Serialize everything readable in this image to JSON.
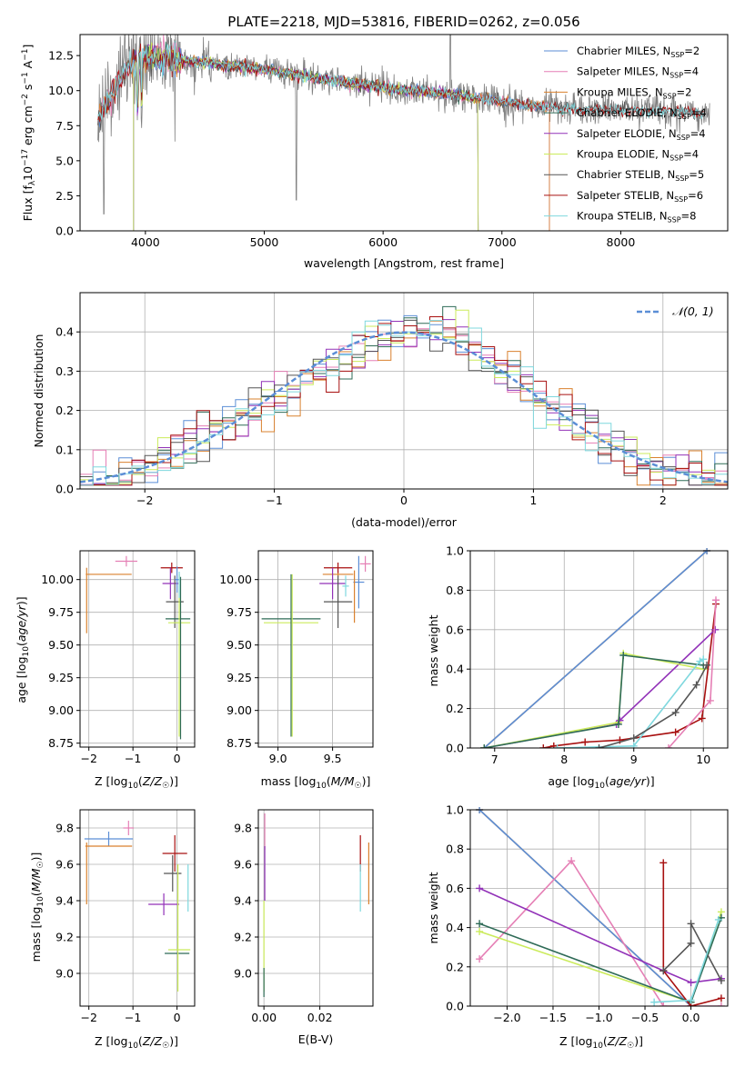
{
  "colors": {
    "chabrier_miles": "#5B8ED6",
    "salpeter_miles": "#E57FB5",
    "kroupa_miles": "#D9812E",
    "chabrier_elodie": "#2F6B57",
    "salpeter_elodie": "#9232B8",
    "kroupa_elodie": "#CBEB5B",
    "chabrier_stelib": "#555555",
    "salpeter_stelib": "#A81010",
    "kroupa_stelib": "#7FD8DE",
    "data": "#808080",
    "grid": "#b0b0b0"
  },
  "chart_data": [
    {
      "id": "spectrum",
      "type": "line",
      "title": "PLATE=2218, MJD=53816, FIBERID=0262, z=0.056",
      "xlabel": "wavelength [Angstrom, rest frame]",
      "ylabel": "Flux [f_λ10^-17 erg cm^-2 s^-1 A^-1]",
      "xlim": [
        3450,
        8900
      ],
      "ylim": [
        0,
        14
      ],
      "xticks": [
        "4000",
        "5000",
        "6000",
        "7000",
        "8000"
      ],
      "yticks": [
        "0.0",
        "2.5",
        "5.0",
        "7.5",
        "10.0",
        "12.5"
      ],
      "grid": false,
      "legend_position": "upper-right",
      "legend": [
        {
          "label": "Chabrier MILES, N",
          "sub": "SSP",
          "n": "=2"
        },
        {
          "label": "Salpeter MILES, N",
          "sub": "SSP",
          "n": "=4"
        },
        {
          "label": "Kroupa MILES, N",
          "sub": "SSP",
          "n": "=2"
        },
        {
          "label": "Chabrier ELODIE, N",
          "sub": "SSP",
          "n": "=4"
        },
        {
          "label": "Salpeter ELODIE, N",
          "sub": "SSP",
          "n": "=4"
        },
        {
          "label": "Kroupa ELODIE, N",
          "sub": "SSP",
          "n": "=4"
        },
        {
          "label": "Chabrier STELIB, N",
          "sub": "SSP",
          "n": "=5"
        },
        {
          "label": "Salpeter STELIB, N",
          "sub": "SSP",
          "n": "=6"
        },
        {
          "label": "Kroupa STELIB, N",
          "sub": "SSP",
          "n": "=8"
        }
      ],
      "continuum": [
        [
          3600,
          8.0
        ],
        [
          3700,
          9.5
        ],
        [
          3800,
          11.0
        ],
        [
          3900,
          12.0
        ],
        [
          4000,
          12.5
        ],
        [
          4200,
          12.3
        ],
        [
          4500,
          12.0
        ],
        [
          5000,
          11.5
        ],
        [
          5500,
          10.8
        ],
        [
          6000,
          10.2
        ],
        [
          6500,
          9.8
        ],
        [
          7000,
          9.2
        ],
        [
          7500,
          8.7
        ],
        [
          8000,
          8.6
        ],
        [
          8500,
          8.5
        ],
        [
          8700,
          8.4
        ]
      ]
    },
    {
      "id": "residuals",
      "type": "step",
      "xlabel": "(data-model)/error",
      "ylabel": "Normed distribution",
      "xlim": [
        -2.5,
        2.5
      ],
      "ylim": [
        0,
        0.5
      ],
      "xticks": [
        "−2",
        "−1",
        "0",
        "1",
        "2"
      ],
      "yticks": [
        "0.0",
        "0.1",
        "0.2",
        "0.3",
        "0.4"
      ],
      "grid": true,
      "legend_position": "upper-right",
      "gaussian_label": "𝒩(0, 1)"
    },
    {
      "id": "age_vs_Z",
      "type": "errorbar",
      "xlabel": "Z [log10(Z/Z☉)]",
      "ylabel": "age [log10(age/yr)]",
      "xlim": [
        -2.2,
        0.4
      ],
      "ylim": [
        8.72,
        10.22
      ],
      "xticks": [
        "−2",
        "−1",
        "0"
      ],
      "yticks": [
        "8.75",
        "9.00",
        "9.25",
        "9.50",
        "9.75",
        "10.00"
      ],
      "points": [
        {
          "s": "salpeter_miles",
          "x": -1.15,
          "xe": 0.25,
          "y": 10.14,
          "ye": 0.04
        },
        {
          "s": "kroupa_miles",
          "x": -1.55,
          "xe": 0.52,
          "y": 10.04,
          "ye": 0.0
        },
        {
          "s": "kroupa_miles",
          "x": -2.05,
          "xe": 0.0,
          "y": 9.84,
          "ye": 0.25
        },
        {
          "s": "salpeter_stelib",
          "x": -0.12,
          "xe": 0.25,
          "y": 10.09,
          "ye": 0.04
        },
        {
          "s": "salpeter_elodie",
          "x": -0.15,
          "xe": 0.18,
          "y": 9.97,
          "ye": 0.12
        },
        {
          "s": "chabrier_stelib",
          "x": -0.05,
          "xe": 0.2,
          "y": 9.83,
          "ye": 0.2
        },
        {
          "s": "chabrier_miles",
          "x": 0.0,
          "xe": 0.05,
          "y": 10.0,
          "ye": 0.1
        },
        {
          "s": "chabrier_elodie",
          "x": 0.02,
          "xe": 0.28,
          "y": 9.7,
          "ye": 0.0
        },
        {
          "s": "kroupa_elodie",
          "x": 0.05,
          "xe": 0.25,
          "y": 9.67,
          "ye": 0.0
        },
        {
          "s": "kroupa_elodie",
          "x": 0.05,
          "xe": 0.0,
          "y": 9.42,
          "ye": 0.62
        },
        {
          "s": "chabrier_elodie",
          "x": 0.08,
          "xe": 0.0,
          "y": 9.4,
          "ye": 0.62
        },
        {
          "s": "kroupa_stelib",
          "x": 0.05,
          "xe": 0.0,
          "y": 9.96,
          "ye": 0.1
        }
      ]
    },
    {
      "id": "age_vs_mass",
      "type": "errorbar",
      "xlabel": "mass [log10(M/M☉)]",
      "xlim": [
        8.82,
        9.87
      ],
      "ylim": [
        8.72,
        10.22
      ],
      "xticks": [
        "9.0",
        "9.5"
      ],
      "yticks": [
        "8.75",
        "9.00",
        "9.25",
        "9.50",
        "9.75",
        "10.00"
      ],
      "points": [
        {
          "s": "salpeter_miles",
          "x": 9.8,
          "xe": 0.05,
          "y": 10.12,
          "ye": 0.06
        },
        {
          "s": "chabrier_miles",
          "x": 9.74,
          "xe": 0.05,
          "y": 9.98,
          "ye": 0.2
        },
        {
          "s": "kroupa_miles",
          "x": 9.55,
          "xe": 0.14,
          "y": 10.04,
          "ye": 0.02
        },
        {
          "s": "salpeter_stelib",
          "x": 9.55,
          "xe": 0.13,
          "y": 10.09,
          "ye": 0.04
        },
        {
          "s": "salpeter_elodie",
          "x": 9.5,
          "xe": 0.12,
          "y": 9.97,
          "ye": 0.12
        },
        {
          "s": "chabrier_stelib",
          "x": 9.55,
          "xe": 0.13,
          "y": 9.83,
          "ye": 0.2
        },
        {
          "s": "kroupa_miles",
          "x": 9.7,
          "xe": 0.0,
          "y": 9.87,
          "ye": 0.2
        },
        {
          "s": "chabrier_elodie",
          "x": 9.12,
          "xe": 0.27,
          "y": 9.7,
          "ye": 0.0
        },
        {
          "s": "kroupa_elodie",
          "x": 9.12,
          "xe": 0.25,
          "y": 9.67,
          "ye": 0.0
        },
        {
          "s": "chabrier_elodie",
          "x": 9.12,
          "xe": 0.0,
          "y": 9.42,
          "ye": 0.62
        },
        {
          "s": "kroupa_elodie",
          "x": 9.13,
          "xe": 0.0,
          "y": 9.42,
          "ye": 0.62
        },
        {
          "s": "kroupa_stelib",
          "x": 9.62,
          "xe": 0.03,
          "y": 9.95,
          "ye": 0.08
        }
      ]
    },
    {
      "id": "mass_vs_Z",
      "type": "errorbar",
      "xlabel": "Z [log10(Z/Z☉)]",
      "ylabel": "mass [log10(M/M☉)]",
      "xlim": [
        -2.2,
        0.4
      ],
      "ylim": [
        8.82,
        9.9
      ],
      "xticks": [
        "−2",
        "−1",
        "0"
      ],
      "yticks": [
        "9.0",
        "9.2",
        "9.4",
        "9.6",
        "9.8"
      ],
      "points": [
        {
          "s": "salpeter_miles",
          "x": -1.1,
          "xe": 0.12,
          "y": 9.8,
          "ye": 0.04
        },
        {
          "s": "chabrier_miles",
          "x": -1.55,
          "xe": 0.55,
          "y": 9.74,
          "ye": 0.04
        },
        {
          "s": "kroupa_miles",
          "x": -1.55,
          "xe": 0.53,
          "y": 9.7,
          "ye": 0.0
        },
        {
          "s": "kroupa_miles",
          "x": -2.05,
          "xe": 0.0,
          "y": 9.55,
          "ye": 0.17
        },
        {
          "s": "salpeter_stelib",
          "x": -0.05,
          "xe": 0.28,
          "y": 9.66,
          "ye": 0.1
        },
        {
          "s": "salpeter_elodie",
          "x": -0.3,
          "xe": 0.35,
          "y": 9.38,
          "ye": 0.06
        },
        {
          "s": "chabrier_stelib",
          "x": -0.1,
          "xe": 0.2,
          "y": 9.55,
          "ye": 0.1
        },
        {
          "s": "chabrier_elodie",
          "x": 0.0,
          "xe": 0.28,
          "y": 9.11,
          "ye": 0.0
        },
        {
          "s": "kroupa_elodie",
          "x": 0.05,
          "xe": 0.25,
          "y": 9.13,
          "ye": 0.0
        },
        {
          "s": "kroupa_elodie",
          "x": 0.02,
          "xe": 0.0,
          "y": 9.25,
          "ye": 0.35
        },
        {
          "s": "kroupa_stelib",
          "x": 0.25,
          "xe": 0.0,
          "y": 9.47,
          "ye": 0.13
        }
      ]
    },
    {
      "id": "mass_vs_ebv",
      "type": "errorbar",
      "xlabel": "E(B-V)",
      "xlim": [
        -0.002,
        0.039
      ],
      "ylim": [
        8.82,
        9.9
      ],
      "xticks": [
        "0.00",
        "0.02"
      ],
      "yticks": [
        "9.0",
        "9.2",
        "9.4",
        "9.6",
        "9.8"
      ],
      "points": [
        {
          "s": "salpeter_miles",
          "x": 0.0003,
          "xe": 0.0,
          "y": 9.78,
          "ye": 0.1
        },
        {
          "s": "salpeter_elodie",
          "x": 0.0003,
          "xe": 0.0,
          "y": 9.55,
          "ye": 0.15
        },
        {
          "s": "kroupa_elodie",
          "x": 0.0,
          "xe": 0.0,
          "y": 9.15,
          "ye": 0.25
        },
        {
          "s": "chabrier_elodie",
          "x": 0.0,
          "xe": 0.0,
          "y": 8.95,
          "ye": 0.08
        },
        {
          "s": "salpeter_stelib",
          "x": 0.0345,
          "xe": 0.0,
          "y": 9.66,
          "ye": 0.1
        },
        {
          "s": "kroupa_stelib",
          "x": 0.0345,
          "xe": 0.0,
          "y": 9.47,
          "ye": 0.13
        },
        {
          "s": "kroupa_miles",
          "x": 0.0375,
          "xe": 0.0,
          "y": 9.55,
          "ye": 0.17
        }
      ]
    },
    {
      "id": "weight_vs_age",
      "type": "line",
      "xlabel": "age [log10(age/yr)]",
      "ylabel": "mass weight",
      "xlim": [
        6.65,
        10.35
      ],
      "ylim": [
        0,
        1
      ],
      "xticks": [
        "7",
        "8",
        "9",
        "10"
      ],
      "yticks": [
        "0.0",
        "0.2",
        "0.4",
        "0.6",
        "0.8",
        "1.0"
      ],
      "grid": true,
      "series": [
        {
          "s": "kroupa_miles",
          "points": [
            [
              6.85,
              0.0
            ],
            [
              10.05,
              1.0
            ]
          ]
        },
        {
          "s": "chabrier_miles",
          "points": [
            [
              6.85,
              0.0
            ],
            [
              10.05,
              1.0
            ]
          ]
        },
        {
          "s": "salpeter_stelib",
          "points": [
            [
              7.7,
              0.0
            ],
            [
              7.85,
              0.01
            ],
            [
              8.3,
              0.03
            ],
            [
              8.8,
              0.04
            ],
            [
              9.6,
              0.08
            ],
            [
              9.98,
              0.15
            ],
            [
              10.18,
              0.73
            ]
          ]
        },
        {
          "s": "salpeter_elodie",
          "points": [
            [
              6.85,
              0.0
            ],
            [
              8.75,
              0.12
            ],
            [
              8.8,
              0.14
            ],
            [
              10.17,
              0.6
            ]
          ]
        },
        {
          "s": "kroupa_elodie",
          "points": [
            [
              6.85,
              0.0
            ],
            [
              8.78,
              0.13
            ],
            [
              8.85,
              0.48
            ],
            [
              10.0,
              0.4
            ]
          ]
        },
        {
          "s": "chabrier_elodie",
          "points": [
            [
              6.85,
              0.0
            ],
            [
              8.78,
              0.12
            ],
            [
              8.85,
              0.47
            ],
            [
              10.0,
              0.42
            ]
          ]
        },
        {
          "s": "kroupa_stelib",
          "points": [
            [
              7.9,
              0.0
            ],
            [
              9.0,
              0.01
            ],
            [
              9.95,
              0.44
            ],
            [
              10.0,
              0.45
            ]
          ]
        },
        {
          "s": "chabrier_stelib",
          "points": [
            [
              8.5,
              0.0
            ],
            [
              9.0,
              0.05
            ],
            [
              9.6,
              0.18
            ],
            [
              9.9,
              0.32
            ],
            [
              10.05,
              0.42
            ]
          ]
        },
        {
          "s": "salpeter_miles",
          "points": [
            [
              9.5,
              0.0
            ],
            [
              10.1,
              0.24
            ],
            [
              10.18,
              0.75
            ]
          ]
        }
      ]
    },
    {
      "id": "weight_vs_Z",
      "type": "line",
      "xlabel": "Z [log10(Z/Z☉)]",
      "ylabel": "mass weight",
      "xlim": [
        -2.4,
        0.4
      ],
      "ylim": [
        0,
        1
      ],
      "xticks": [
        "−2.0",
        "−1.5",
        "−1.0",
        "−0.5",
        "0.0"
      ],
      "yticks": [
        "0.0",
        "0.2",
        "0.4",
        "0.6",
        "0.8",
        "1.0"
      ],
      "grid": true,
      "series": [
        {
          "s": "kroupa_miles",
          "points": [
            [
              -2.3,
              1.0
            ],
            [
              0.0,
              0.0
            ]
          ]
        },
        {
          "s": "chabrier_miles",
          "points": [
            [
              -2.3,
              1.0
            ],
            [
              0.0,
              0.0
            ]
          ]
        },
        {
          "s": "salpeter_miles",
          "points": [
            [
              -2.3,
              0.24
            ],
            [
              -1.3,
              0.74
            ],
            [
              -0.3,
              0.0
            ],
            [
              0.33,
              0.0
            ]
          ]
        },
        {
          "s": "salpeter_elodie",
          "points": [
            [
              -2.3,
              0.6
            ],
            [
              -0.3,
              0.18
            ],
            [
              0.0,
              0.12
            ],
            [
              0.33,
              0.14
            ]
          ]
        },
        {
          "s": "kroupa_elodie",
          "points": [
            [
              -2.3,
              0.38
            ],
            [
              0.0,
              0.02
            ],
            [
              0.33,
              0.48
            ]
          ]
        },
        {
          "s": "chabrier_elodie",
          "points": [
            [
              -2.3,
              0.42
            ],
            [
              0.0,
              0.02
            ],
            [
              0.33,
              0.45
            ]
          ]
        },
        {
          "s": "salpeter_stelib",
          "points": [
            [
              -0.3,
              0.73
            ],
            [
              -0.3,
              0.18
            ],
            [
              0.0,
              0.0
            ],
            [
              0.33,
              0.04
            ]
          ]
        },
        {
          "s": "chabrier_stelib",
          "points": [
            [
              -0.3,
              0.18
            ],
            [
              0.0,
              0.32
            ],
            [
              0.0,
              0.42
            ],
            [
              0.33,
              0.13
            ]
          ]
        },
        {
          "s": "kroupa_stelib",
          "points": [
            [
              -0.4,
              0.02
            ],
            [
              0.0,
              0.03
            ],
            [
              0.3,
              0.44
            ]
          ]
        }
      ]
    }
  ]
}
